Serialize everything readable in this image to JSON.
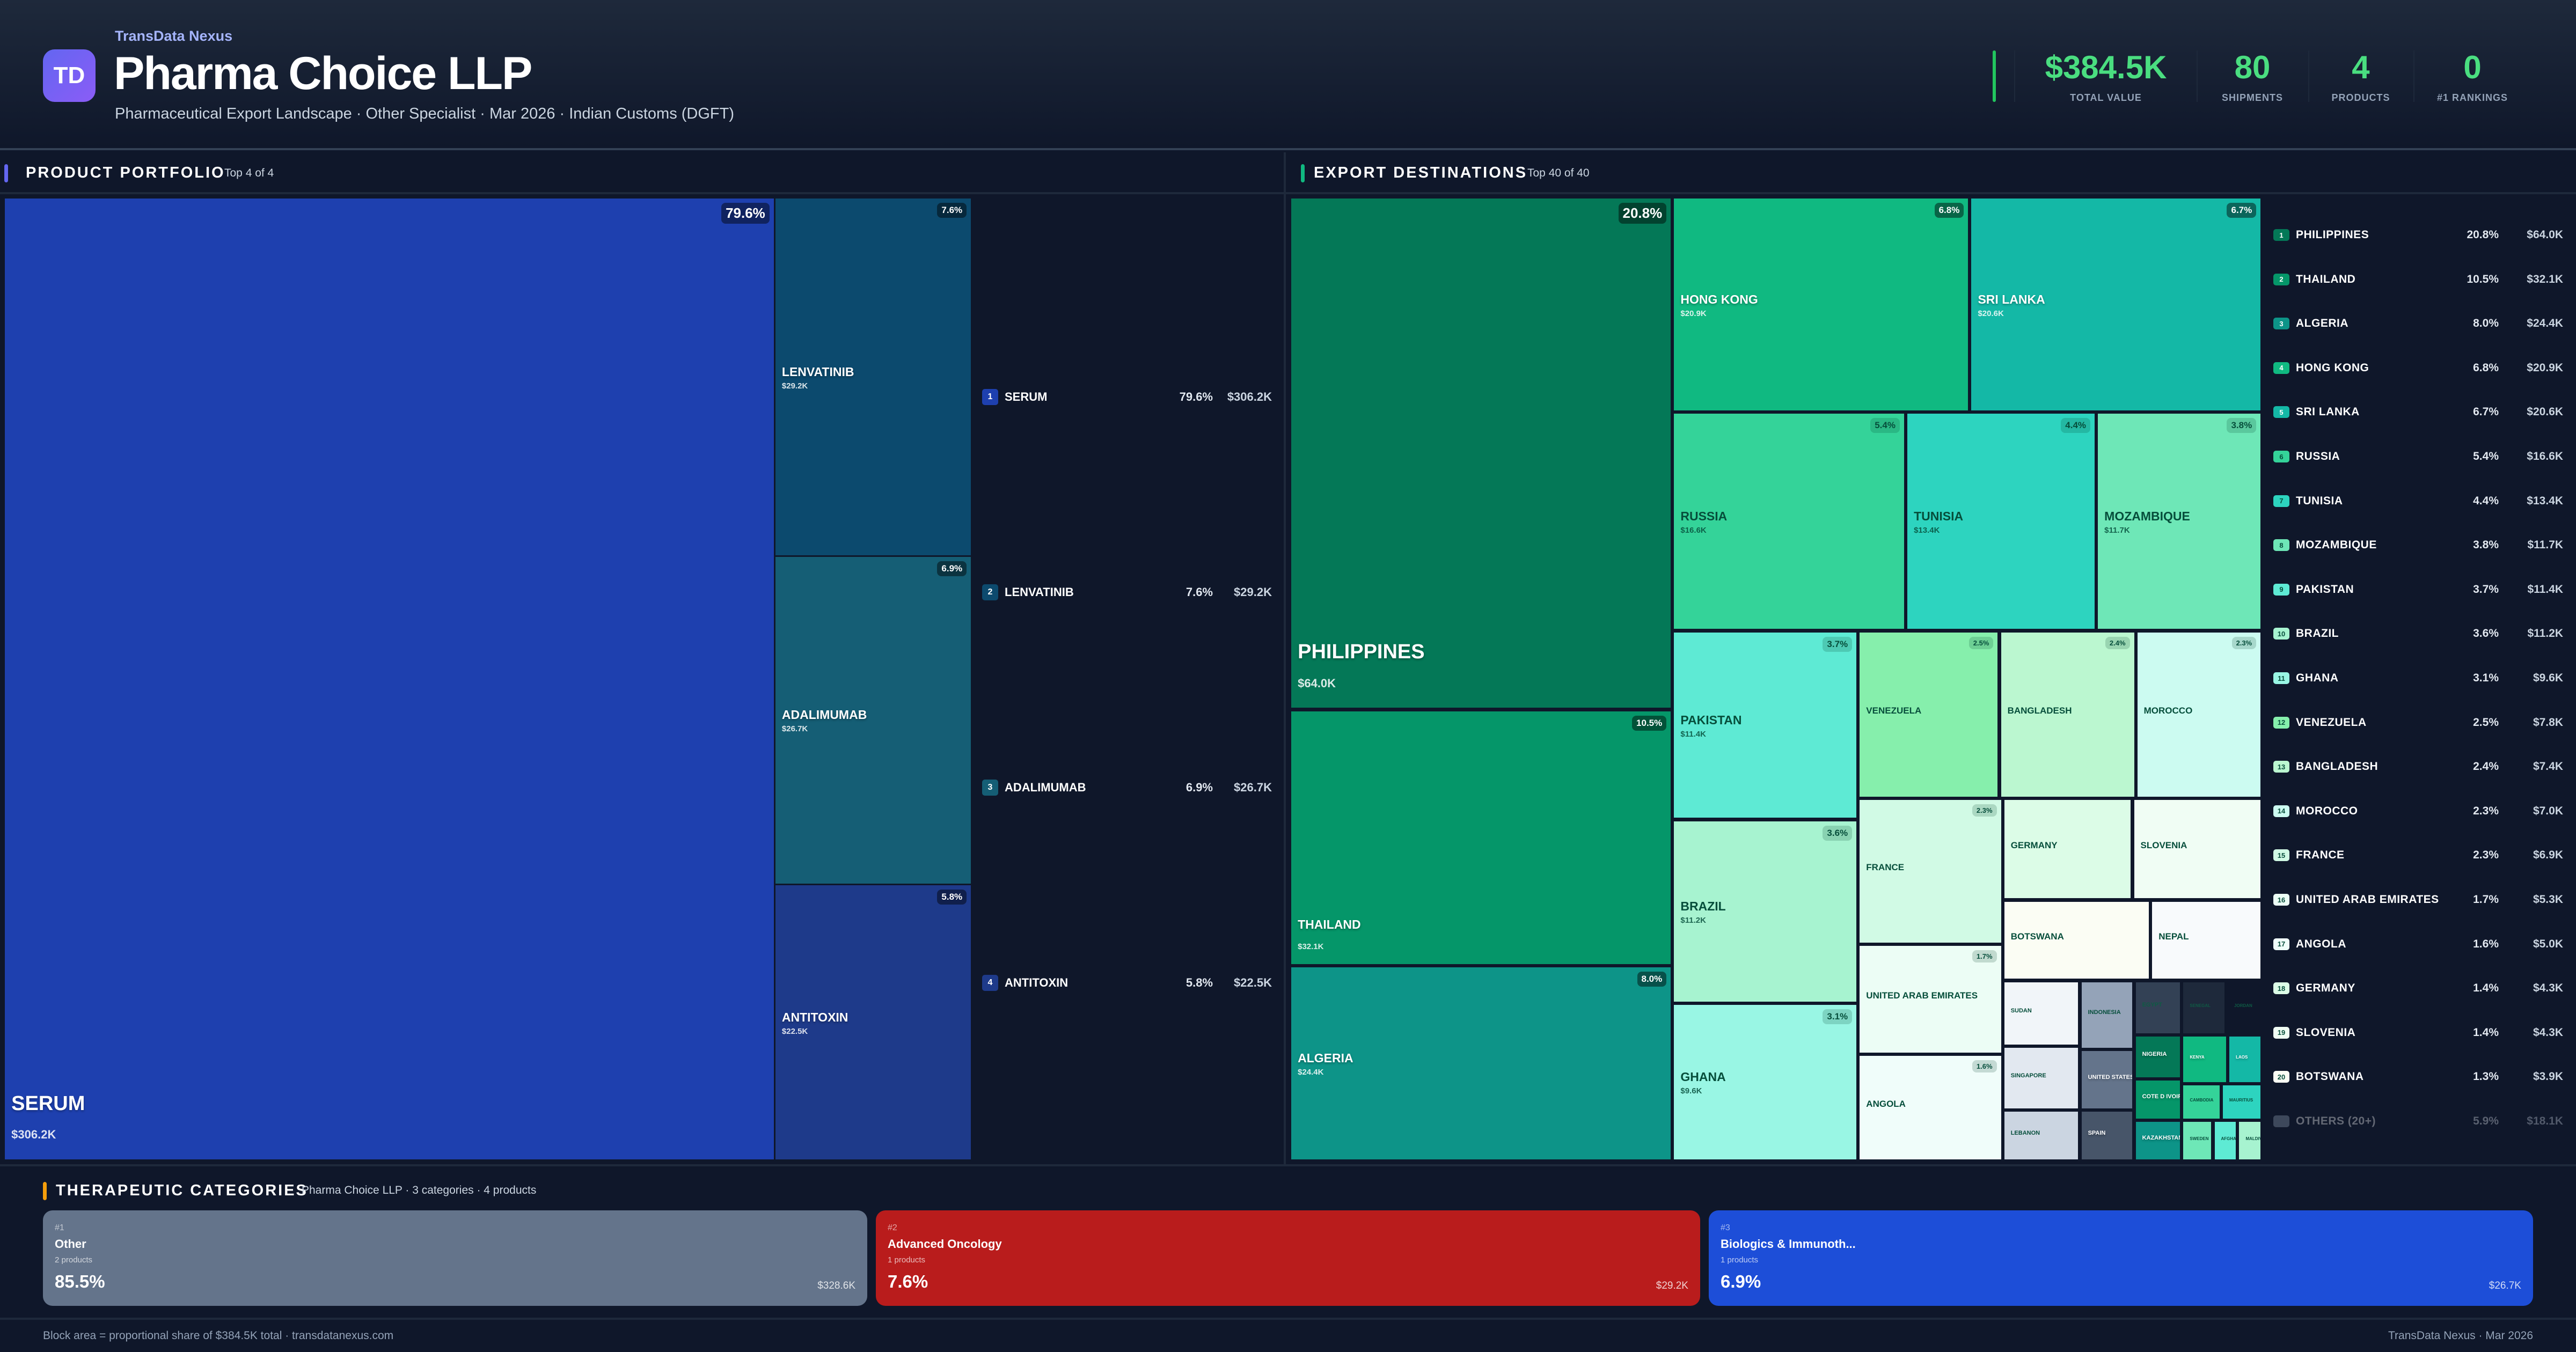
{
  "header": {
    "brand": "TransData Nexus",
    "logo_text": "TD",
    "title": "Pharma Choice LLP",
    "subtitle": "Pharmaceutical Export Landscape · Other Specialist · Mar 2026 · Indian Customs (DGFT)"
  },
  "kpis": [
    {
      "value": "$384.5K",
      "label": "TOTAL VALUE"
    },
    {
      "value": "80",
      "label": "SHIPMENTS"
    },
    {
      "value": "4",
      "label": "PRODUCTS"
    },
    {
      "value": "0",
      "label": "#1 RANKINGS"
    }
  ],
  "colors": {
    "accent_green": "#4ade80",
    "product_bar": "#6366f1",
    "dest_bar": "#10b981",
    "categories_bar": "#f59e0b"
  },
  "product_portfolio": {
    "title": "PRODUCT PORTFOLIO",
    "subtitle": "Top 4 of 4",
    "items": [
      {
        "rank": "1",
        "name": "SERUM",
        "pct": "79.6%",
        "value": "$306.2K",
        "color": "#1e40af"
      },
      {
        "rank": "2",
        "name": "LENVATINIB",
        "pct": "7.6%",
        "value": "$29.2K",
        "color": "#0c4a6e"
      },
      {
        "rank": "3",
        "name": "ADALIMUMAB",
        "pct": "6.9%",
        "value": "$26.7K",
        "color": "#155e75"
      },
      {
        "rank": "4",
        "name": "ANTITOXIN",
        "pct": "5.8%",
        "value": "$22.5K",
        "color": "#1e3a8a"
      }
    ]
  },
  "export_destinations": {
    "title": "EXPORT DESTINATIONS",
    "subtitle": "Top 40 of 40",
    "cells": [
      {
        "name": "PHILIPPINES",
        "pct": "20.8%",
        "value": "$64.0K",
        "color": "#047857"
      },
      {
        "name": "THAILAND",
        "pct": "10.5%",
        "value": "$32.1K",
        "color": "#059669"
      },
      {
        "name": "ALGERIA",
        "pct": "8.0%",
        "value": "$24.4K",
        "color": "#0d9488"
      },
      {
        "name": "HONG KONG",
        "pct": "6.8%",
        "value": "$20.9K",
        "color": "#10b981"
      },
      {
        "name": "SRI LANKA",
        "pct": "6.7%",
        "value": "$20.6K",
        "color": "#14b8a6"
      },
      {
        "name": "RUSSIA",
        "pct": "5.4%",
        "value": "$16.6K",
        "color": "#34d399"
      },
      {
        "name": "TUNISIA",
        "pct": "4.4%",
        "value": "$13.4K",
        "color": "#2dd4bf"
      },
      {
        "name": "MOZAMBIQUE",
        "pct": "3.8%",
        "value": "$11.7K",
        "color": "#6ee7b7"
      },
      {
        "name": "PAKISTAN",
        "pct": "3.7%",
        "value": "$11.4K",
        "color": "#5eead4"
      },
      {
        "name": "BRAZIL",
        "pct": "3.6%",
        "value": "$11.2K",
        "color": "#a7f3d0"
      },
      {
        "name": "GHANA",
        "pct": "3.1%",
        "value": "$9.6K",
        "color": "#99f6e4"
      },
      {
        "name": "VENEZUELA",
        "pct": "2.5%",
        "color": "#86efac"
      },
      {
        "name": "BANGLADESH",
        "pct": "2.4%",
        "color": "#bbf7d0"
      },
      {
        "name": "MOROCCO",
        "pct": "2.3%",
        "color": "#ccfbf1"
      },
      {
        "name": "FRANCE",
        "pct": "2.3%",
        "color": "#d1fae5"
      },
      {
        "name": "UNITED ARAB EMIRATES",
        "pct": "1.7%",
        "color": "#ecfdf5"
      },
      {
        "name": "ANGOLA",
        "pct": "1.6%",
        "color": "#f0fdfa"
      },
      {
        "name": "GERMANY",
        "color": "#dcfce7"
      },
      {
        "name": "SLOVENIA",
        "color": "#f0fdf4"
      },
      {
        "name": "BOTSWANA",
        "color": "#fbfdf4"
      },
      {
        "name": "NEPAL",
        "color": "#f8fafc"
      },
      {
        "name": "SUDAN",
        "color": "#f1f5f9"
      },
      {
        "name": "SINGAPORE",
        "color": "#e2e8f0"
      },
      {
        "name": "LEBANON",
        "color": "#cbd5e1"
      },
      {
        "name": "INDONESIA",
        "color": "#94a3b8"
      },
      {
        "name": "UNITED STATES",
        "color": "#64748b"
      },
      {
        "name": "SPAIN",
        "color": "#475569"
      },
      {
        "name": "EGYPT",
        "color": "#334155"
      },
      {
        "name": "SENEGAL",
        "color": "#1e293b"
      },
      {
        "name": "JORDAN",
        "color": "#0f172a"
      },
      {
        "name": "NIGERIA",
        "color": "#047857"
      },
      {
        "name": "COTE D IVOIRE",
        "color": "#059669"
      },
      {
        "name": "KENYA",
        "color": "#10b981"
      },
      {
        "name": "LAOS",
        "color": "#14b8a6"
      },
      {
        "name": "CAMBODIA",
        "color": "#34d399"
      },
      {
        "name": "MAURITIUS",
        "color": "#2dd4bf"
      },
      {
        "name": "KAZAKHSTAN",
        "color": "#0d9488"
      },
      {
        "name": "SWEDEN",
        "color": "#6ee7b7"
      },
      {
        "name": "AFGHANISTAN",
        "color": "#5eead4"
      },
      {
        "name": "MALDIVES",
        "color": "#a7f3d0"
      }
    ],
    "list": [
      {
        "rank": "1",
        "name": "PHILIPPINES",
        "pct": "20.8%",
        "value": "$64.0K"
      },
      {
        "rank": "2",
        "name": "THAILAND",
        "pct": "10.5%",
        "value": "$32.1K"
      },
      {
        "rank": "3",
        "name": "ALGERIA",
        "pct": "8.0%",
        "value": "$24.4K"
      },
      {
        "rank": "4",
        "name": "HONG KONG",
        "pct": "6.8%",
        "value": "$20.9K"
      },
      {
        "rank": "5",
        "name": "SRI LANKA",
        "pct": "6.7%",
        "value": "$20.6K"
      },
      {
        "rank": "6",
        "name": "RUSSIA",
        "pct": "5.4%",
        "value": "$16.6K"
      },
      {
        "rank": "7",
        "name": "TUNISIA",
        "pct": "4.4%",
        "value": "$13.4K"
      },
      {
        "rank": "8",
        "name": "MOZAMBIQUE",
        "pct": "3.8%",
        "value": "$11.7K"
      },
      {
        "rank": "9",
        "name": "PAKISTAN",
        "pct": "3.7%",
        "value": "$11.4K"
      },
      {
        "rank": "10",
        "name": "BRAZIL",
        "pct": "3.6%",
        "value": "$11.2K"
      },
      {
        "rank": "11",
        "name": "GHANA",
        "pct": "3.1%",
        "value": "$9.6K"
      },
      {
        "rank": "12",
        "name": "VENEZUELA",
        "pct": "2.5%",
        "value": "$7.8K"
      },
      {
        "rank": "13",
        "name": "BANGLADESH",
        "pct": "2.4%",
        "value": "$7.4K"
      },
      {
        "rank": "14",
        "name": "MOROCCO",
        "pct": "2.3%",
        "value": "$7.0K"
      },
      {
        "rank": "15",
        "name": "FRANCE",
        "pct": "2.3%",
        "value": "$6.9K"
      },
      {
        "rank": "16",
        "name": "UNITED ARAB EMIRATES",
        "pct": "1.7%",
        "value": "$5.3K"
      },
      {
        "rank": "17",
        "name": "ANGOLA",
        "pct": "1.6%",
        "value": "$5.0K"
      },
      {
        "rank": "18",
        "name": "GERMANY",
        "pct": "1.4%",
        "value": "$4.3K"
      },
      {
        "rank": "19",
        "name": "SLOVENIA",
        "pct": "1.4%",
        "value": "$4.3K"
      },
      {
        "rank": "20",
        "name": "BOTSWANA",
        "pct": "1.3%",
        "value": "$3.9K"
      }
    ],
    "others": {
      "name": "OTHERS (20+)",
      "pct": "5.9%",
      "value": "$18.1K"
    }
  },
  "therapeutic_categories": {
    "title": "THERAPEUTIC CATEGORIES",
    "subtitle": "Pharma Choice LLP · 3 categories · 4 products",
    "items": [
      {
        "rank": "#1",
        "name": "Other",
        "products": "2 products",
        "pct": "85.5%",
        "value": "$328.6K",
        "color": "#64748b"
      },
      {
        "rank": "#2",
        "name": "Advanced Oncology",
        "products": "1 products",
        "pct": "7.6%",
        "value": "$29.2K",
        "color": "#b91c1c"
      },
      {
        "rank": "#3",
        "name": "Biologics & Immunoth...",
        "products": "1 products",
        "pct": "6.9%",
        "value": "$26.7K",
        "color": "#1d4ed8"
      }
    ]
  },
  "footer": {
    "left": "Block area = proportional share of $384.5K total · transdatanexus.com",
    "right": "TransData Nexus · Mar 2026"
  }
}
